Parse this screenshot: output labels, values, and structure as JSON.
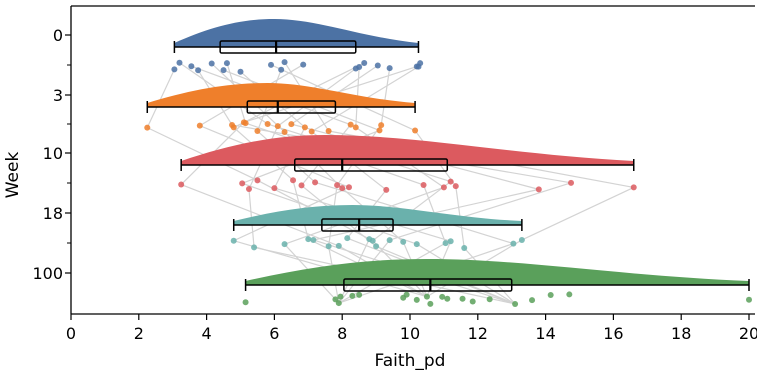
{
  "chart_data": {
    "type": "raincloud",
    "xlabel": "Faith_pd",
    "ylabel": "Week",
    "xlim": [
      0,
      20
    ],
    "xticks": [
      0,
      2,
      4,
      6,
      8,
      10,
      12,
      14,
      16,
      18,
      20
    ],
    "grid": false,
    "categories": [
      "0",
      "3",
      "10",
      "18",
      "100"
    ],
    "colors": {
      "0": "#4c72a4",
      "3": "#ef7f2b",
      "10": "#dc5a5f",
      "18": "#6ab1ac",
      "100": "#5aa05b",
      "connector": "#d3d3d3"
    },
    "box": [
      {
        "week": "0",
        "whisker_low": 3.05,
        "q1": 4.4,
        "median": 6.05,
        "q3": 8.4,
        "whisker_high": 10.25
      },
      {
        "week": "3",
        "whisker_low": 2.25,
        "q1": 5.2,
        "median": 6.1,
        "q3": 7.8,
        "whisker_high": 10.15
      },
      {
        "week": "10",
        "whisker_low": 3.25,
        "q1": 6.6,
        "median": 8.0,
        "q3": 11.1,
        "whisker_high": 16.6
      },
      {
        "week": "18",
        "whisker_low": 4.8,
        "q1": 7.4,
        "median": 8.5,
        "q3": 9.5,
        "whisker_high": 13.3
      },
      {
        "week": "100",
        "whisker_low": 5.15,
        "q1": 8.05,
        "median": 10.6,
        "q3": 13.0,
        "whisker_high": 20.0
      }
    ],
    "points": {
      "0": [
        3.05,
        3.2,
        3.55,
        3.75,
        4.15,
        4.5,
        4.6,
        5.0,
        5.9,
        6.2,
        6.3,
        6.85,
        8.4,
        8.5,
        8.65,
        9.05,
        9.4,
        10.2,
        10.25,
        10.3
      ],
      "3": [
        2.25,
        3.8,
        4.75,
        4.8,
        5.15,
        5.1,
        5.5,
        5.8,
        6.1,
        6.3,
        6.5,
        6.9,
        7.1,
        7.6,
        8.25,
        8.4,
        9.1,
        9.15,
        10.15
      ],
      "10": [
        3.25,
        5.05,
        5.25,
        5.5,
        6.0,
        6.55,
        6.8,
        7.2,
        7.85,
        8.0,
        8.2,
        9.3,
        10.4,
        11.0,
        11.2,
        11.35,
        13.8,
        14.75,
        16.6
      ],
      "18": [
        4.8,
        5.4,
        6.3,
        7.0,
        7.15,
        7.6,
        7.9,
        8.15,
        8.8,
        8.9,
        9.0,
        9.4,
        9.8,
        10.2,
        11.05,
        11.2,
        11.6,
        13.05,
        13.3
      ],
      "100": [
        5.15,
        7.8,
        7.9,
        7.95,
        8.3,
        8.5,
        9.8,
        9.9,
        10.2,
        10.5,
        10.6,
        10.95,
        11.1,
        11.55,
        11.85,
        12.35,
        13.1,
        13.6,
        14.15,
        14.7,
        20.0
      ]
    },
    "density_peak": {
      "0": 6.0,
      "3": 5.8,
      "10": 7.5,
      "18": 8.3,
      "100": 10.5
    }
  }
}
